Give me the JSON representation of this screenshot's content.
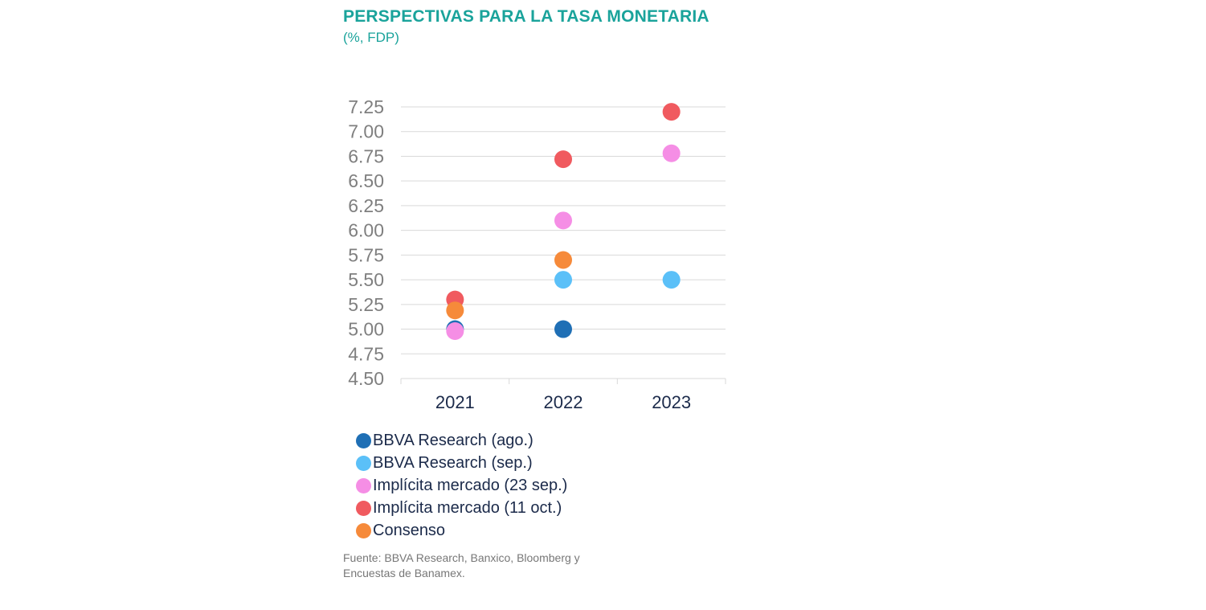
{
  "header": {
    "title": "PERSPECTIVAS PARA LA TASA MONETARIA",
    "subtitle": "(%, FDP)"
  },
  "colors": {
    "title": "#1aa39b",
    "grid": "#d9d9d9",
    "tick_text": "#7f7f7f",
    "category_text": "#1b2a4a"
  },
  "chart_data": {
    "type": "scatter",
    "title": "PERSPECTIVAS PARA LA TASA MONETARIA",
    "subtitle": "(%, FDP)",
    "xlabel": "",
    "ylabel": "",
    "categories": [
      "2021",
      "2022",
      "2023"
    ],
    "ylim": [
      4.5,
      7.25
    ],
    "yticks": [
      4.5,
      4.75,
      5.0,
      5.25,
      5.5,
      5.75,
      6.0,
      6.25,
      6.5,
      6.75,
      7.0,
      7.25
    ],
    "ytick_labels": [
      "4.50",
      "4.75",
      "5.00",
      "5.25",
      "5.50",
      "5.75",
      "6.00",
      "6.25",
      "6.50",
      "6.75",
      "7.00",
      "7.25"
    ],
    "grid": true,
    "legend_position": "bottom",
    "series": [
      {
        "name": "BBVA Research (ago.)",
        "color": "#1f6fb5",
        "values": [
          5.0,
          5.0,
          null
        ]
      },
      {
        "name": "BBVA Research (sep.)",
        "color": "#5bc0f8",
        "values": [
          null,
          5.5,
          5.5
        ]
      },
      {
        "name": "Implícita mercado (23 sep.)",
        "color": "#f58ee5",
        "values": [
          4.98,
          6.1,
          6.78
        ]
      },
      {
        "name": "Implícita mercado (11 oct.)",
        "color": "#f05a5f",
        "values": [
          5.3,
          6.72,
          7.2
        ]
      },
      {
        "name": "Consenso",
        "color": "#f68a3a",
        "values": [
          5.19,
          5.7,
          null
        ]
      }
    ]
  },
  "footer": {
    "source": "Fuente: BBVA Research, Banxico, Bloomberg y Encuestas de Banamex."
  }
}
